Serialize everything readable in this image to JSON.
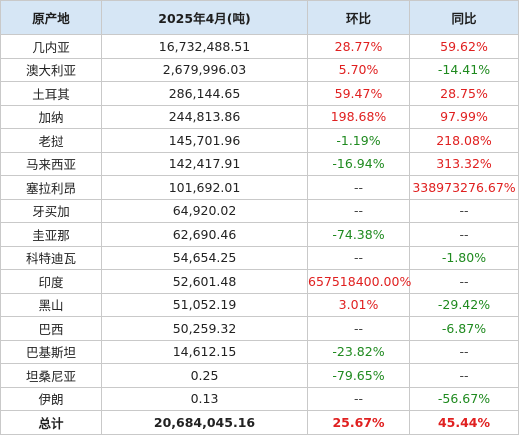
{
  "headers": [
    "原产地",
    "2025年4月(吨)",
    "环比",
    "同比"
  ],
  "rows": [
    {
      "country": "几内亚",
      "qty": "16,732,488.51",
      "mom": "28.77%",
      "mom_tone": "pos",
      "yoy": "59.62%",
      "yoy_tone": "pos"
    },
    {
      "country": "澳大利亚",
      "qty": "2,679,996.03",
      "mom": "5.70%",
      "mom_tone": "pos",
      "yoy": "-14.41%",
      "yoy_tone": "neg"
    },
    {
      "country": "土耳其",
      "qty": "286,144.65",
      "mom": "59.47%",
      "mom_tone": "pos",
      "yoy": "28.75%",
      "yoy_tone": "pos"
    },
    {
      "country": "加纳",
      "qty": "244,813.86",
      "mom": "198.68%",
      "mom_tone": "pos",
      "yoy": "97.99%",
      "yoy_tone": "pos"
    },
    {
      "country": "老挝",
      "qty": "145,701.96",
      "mom": "-1.19%",
      "mom_tone": "neg",
      "yoy": "218.08%",
      "yoy_tone": "pos"
    },
    {
      "country": "马来西亚",
      "qty": "142,417.91",
      "mom": "-16.94%",
      "mom_tone": "neg",
      "yoy": "313.32%",
      "yoy_tone": "pos"
    },
    {
      "country": "塞拉利昂",
      "qty": "101,692.01",
      "mom": "--",
      "mom_tone": "neu",
      "yoy": "338973276.67%",
      "yoy_tone": "pos"
    },
    {
      "country": "牙买加",
      "qty": "64,920.02",
      "mom": "--",
      "mom_tone": "neu",
      "yoy": "--",
      "yoy_tone": "neu"
    },
    {
      "country": "圭亚那",
      "qty": "62,690.46",
      "mom": "-74.38%",
      "mom_tone": "neg",
      "yoy": "--",
      "yoy_tone": "neu"
    },
    {
      "country": "科特迪瓦",
      "qty": "54,654.25",
      "mom": "--",
      "mom_tone": "neu",
      "yoy": "-1.80%",
      "yoy_tone": "neg"
    },
    {
      "country": "印度",
      "qty": "52,601.48",
      "mom": "657518400.00%",
      "mom_tone": "pos",
      "yoy": "--",
      "yoy_tone": "neu"
    },
    {
      "country": "黑山",
      "qty": "51,052.19",
      "mom": "3.01%",
      "mom_tone": "pos",
      "yoy": "-29.42%",
      "yoy_tone": "neg"
    },
    {
      "country": "巴西",
      "qty": "50,259.32",
      "mom": "--",
      "mom_tone": "neu",
      "yoy": "-6.87%",
      "yoy_tone": "neg"
    },
    {
      "country": "巴基斯坦",
      "qty": "14,612.15",
      "mom": "-23.82%",
      "mom_tone": "neg",
      "yoy": "--",
      "yoy_tone": "neu"
    },
    {
      "country": "坦桑尼亚",
      "qty": "0.25",
      "mom": "-79.65%",
      "mom_tone": "neg",
      "yoy": "--",
      "yoy_tone": "neu"
    },
    {
      "country": "伊朗",
      "qty": "0.13",
      "mom": "--",
      "mom_tone": "neu",
      "yoy": "-56.67%",
      "yoy_tone": "neg"
    }
  ],
  "total": {
    "label": "总计",
    "qty": "20,684,045.16",
    "mom": "25.67%",
    "mom_tone": "pos",
    "yoy": "45.44%",
    "yoy_tone": "pos"
  },
  "colors": {
    "header_bg": "#d6e6f5",
    "positive": "#e02020",
    "negative": "#1f8a1f",
    "border": "#c9c9c9"
  }
}
